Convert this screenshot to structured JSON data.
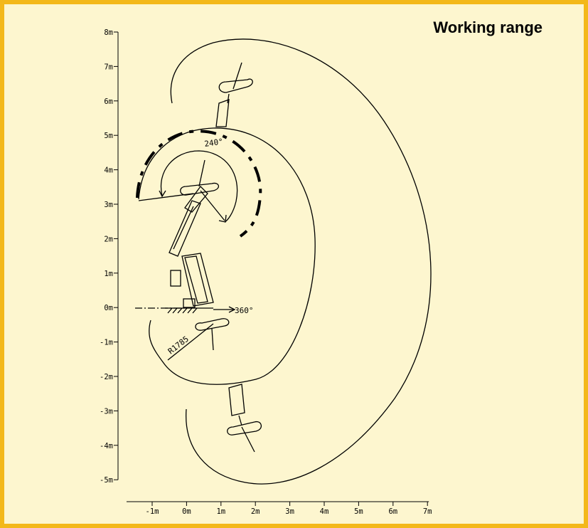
{
  "title": "Working range",
  "y_axis": {
    "ticks": [
      "8m",
      "7m",
      "6m",
      "5m",
      "4m",
      "3m",
      "2m",
      "1m",
      "0m",
      "-1m",
      "-2m",
      "-3m",
      "-4m",
      "-5m"
    ]
  },
  "x_axis": {
    "ticks": [
      "-1m",
      "0m",
      "1m",
      "2m",
      "3m",
      "4m",
      "5m",
      "6m",
      "7m"
    ]
  },
  "annotations": {
    "angle_upper": "240°",
    "angle_base": "360°",
    "radius": "R1785"
  },
  "colors": {
    "border": "#f3b81a",
    "background": "#fdf6cf",
    "ink": "#000000"
  }
}
